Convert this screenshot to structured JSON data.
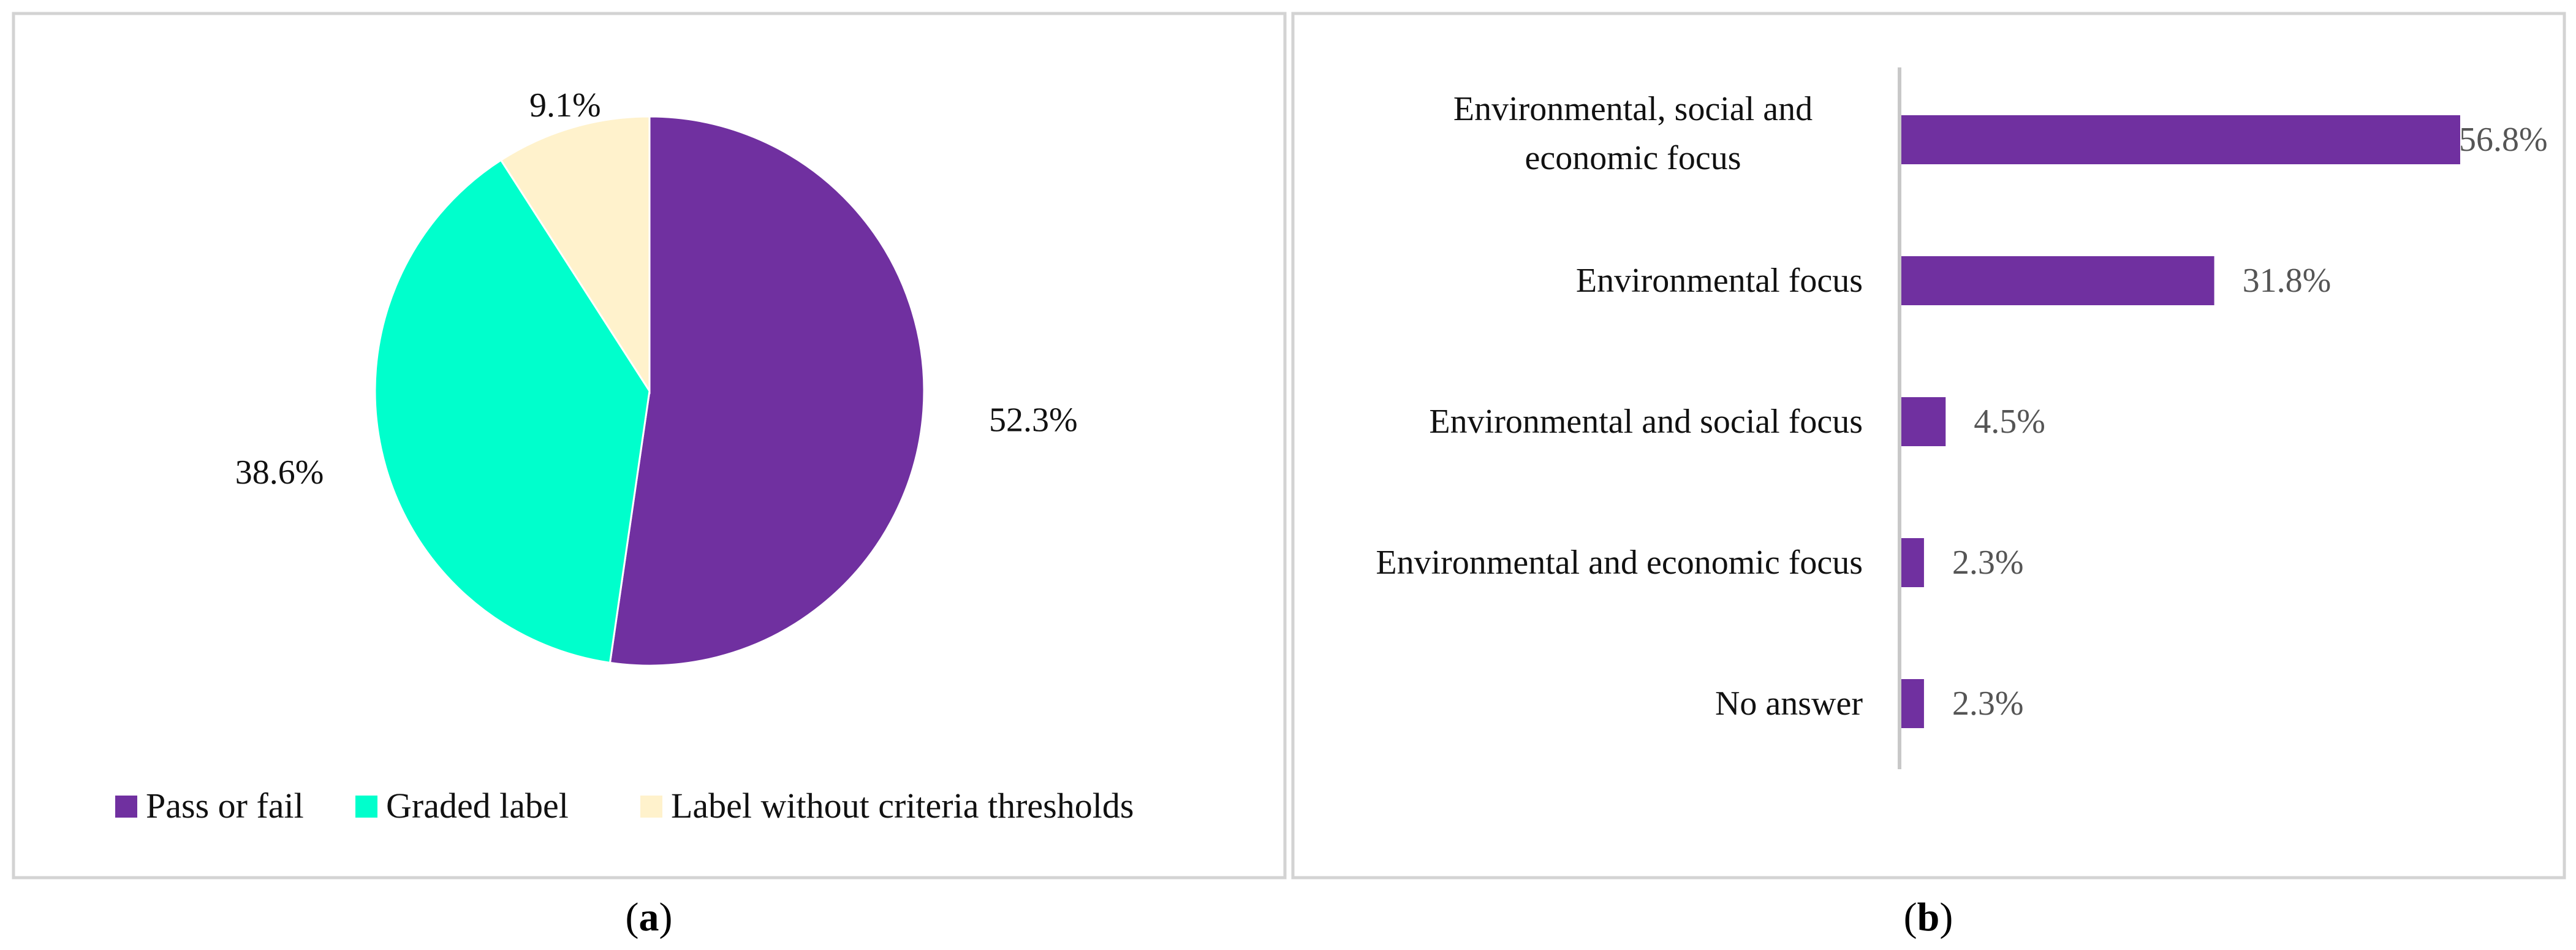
{
  "chart_data": [
    {
      "type": "pie",
      "panel_label": "a",
      "title": "",
      "categories": [
        "Pass or fail",
        "Graded label",
        "Label without criteria thresholds"
      ],
      "values": [
        52.3,
        38.6,
        9.1
      ],
      "value_labels": [
        "52.3%",
        "38.6%",
        "9.1%"
      ],
      "colors": [
        "#7030a0",
        "#00ffcc",
        "#fff2cc"
      ],
      "legend_position": "bottom"
    },
    {
      "type": "bar",
      "orientation": "horizontal",
      "panel_label": "b",
      "title": "",
      "xlabel": "",
      "ylabel": "",
      "categories": [
        [
          "Environmental, social and",
          "economic focus"
        ],
        [
          "Environmental focus"
        ],
        [
          "Environmental and social focus"
        ],
        [
          "Environmental and economic focus"
        ],
        [
          "No answer"
        ]
      ],
      "values": [
        56.8,
        31.8,
        4.5,
        2.3,
        2.3
      ],
      "value_labels": [
        "56.8%",
        "31.8%",
        "4.5%",
        "2.3%",
        "2.3%"
      ],
      "xlim": [
        0,
        60
      ],
      "color": "#7030a0",
      "grid": false
    }
  ]
}
